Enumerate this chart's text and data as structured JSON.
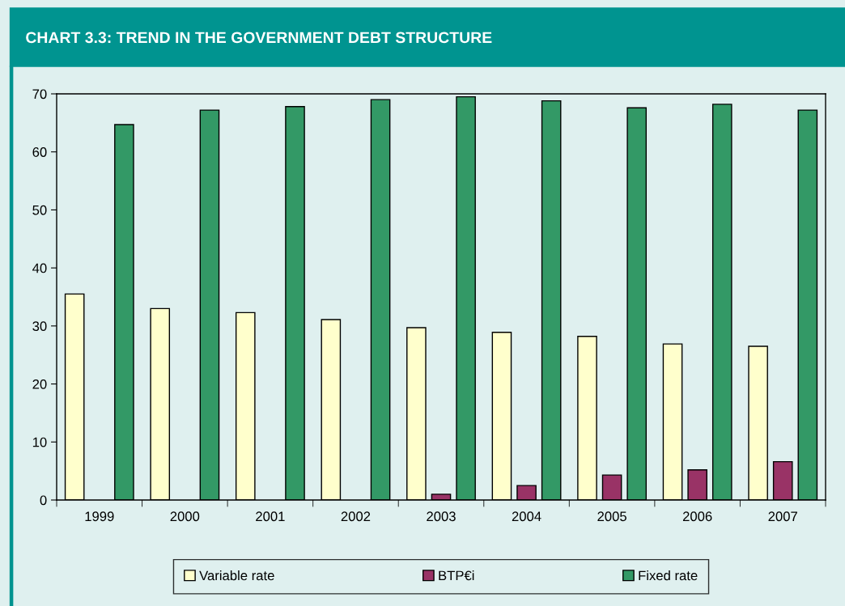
{
  "chart_data": {
    "type": "bar",
    "title": "CHART 3.3: TREND IN THE GOVERNMENT DEBT STRUCTURE",
    "categories": [
      "1999",
      "2000",
      "2001",
      "2002",
      "2003",
      "2004",
      "2005",
      "2006",
      "2007"
    ],
    "series": [
      {
        "name": "Variable rate",
        "color": "#ffffcc",
        "values": [
          35.5,
          33.0,
          32.3,
          31.1,
          29.7,
          28.9,
          28.2,
          26.9,
          26.5
        ]
      },
      {
        "name": "BTP€i",
        "color": "#993366",
        "values": [
          null,
          null,
          null,
          null,
          1.0,
          2.5,
          4.3,
          5.2,
          6.6
        ]
      },
      {
        "name": "Fixed rate",
        "color": "#339966",
        "values": [
          64.7,
          67.2,
          67.8,
          69.0,
          69.5,
          68.8,
          67.6,
          68.2,
          67.2
        ]
      }
    ],
    "ylim": [
      0,
      70
    ],
    "yticks": [
      0,
      10,
      20,
      30,
      40,
      50,
      60,
      70
    ],
    "grid": false,
    "legend": "bottom"
  }
}
